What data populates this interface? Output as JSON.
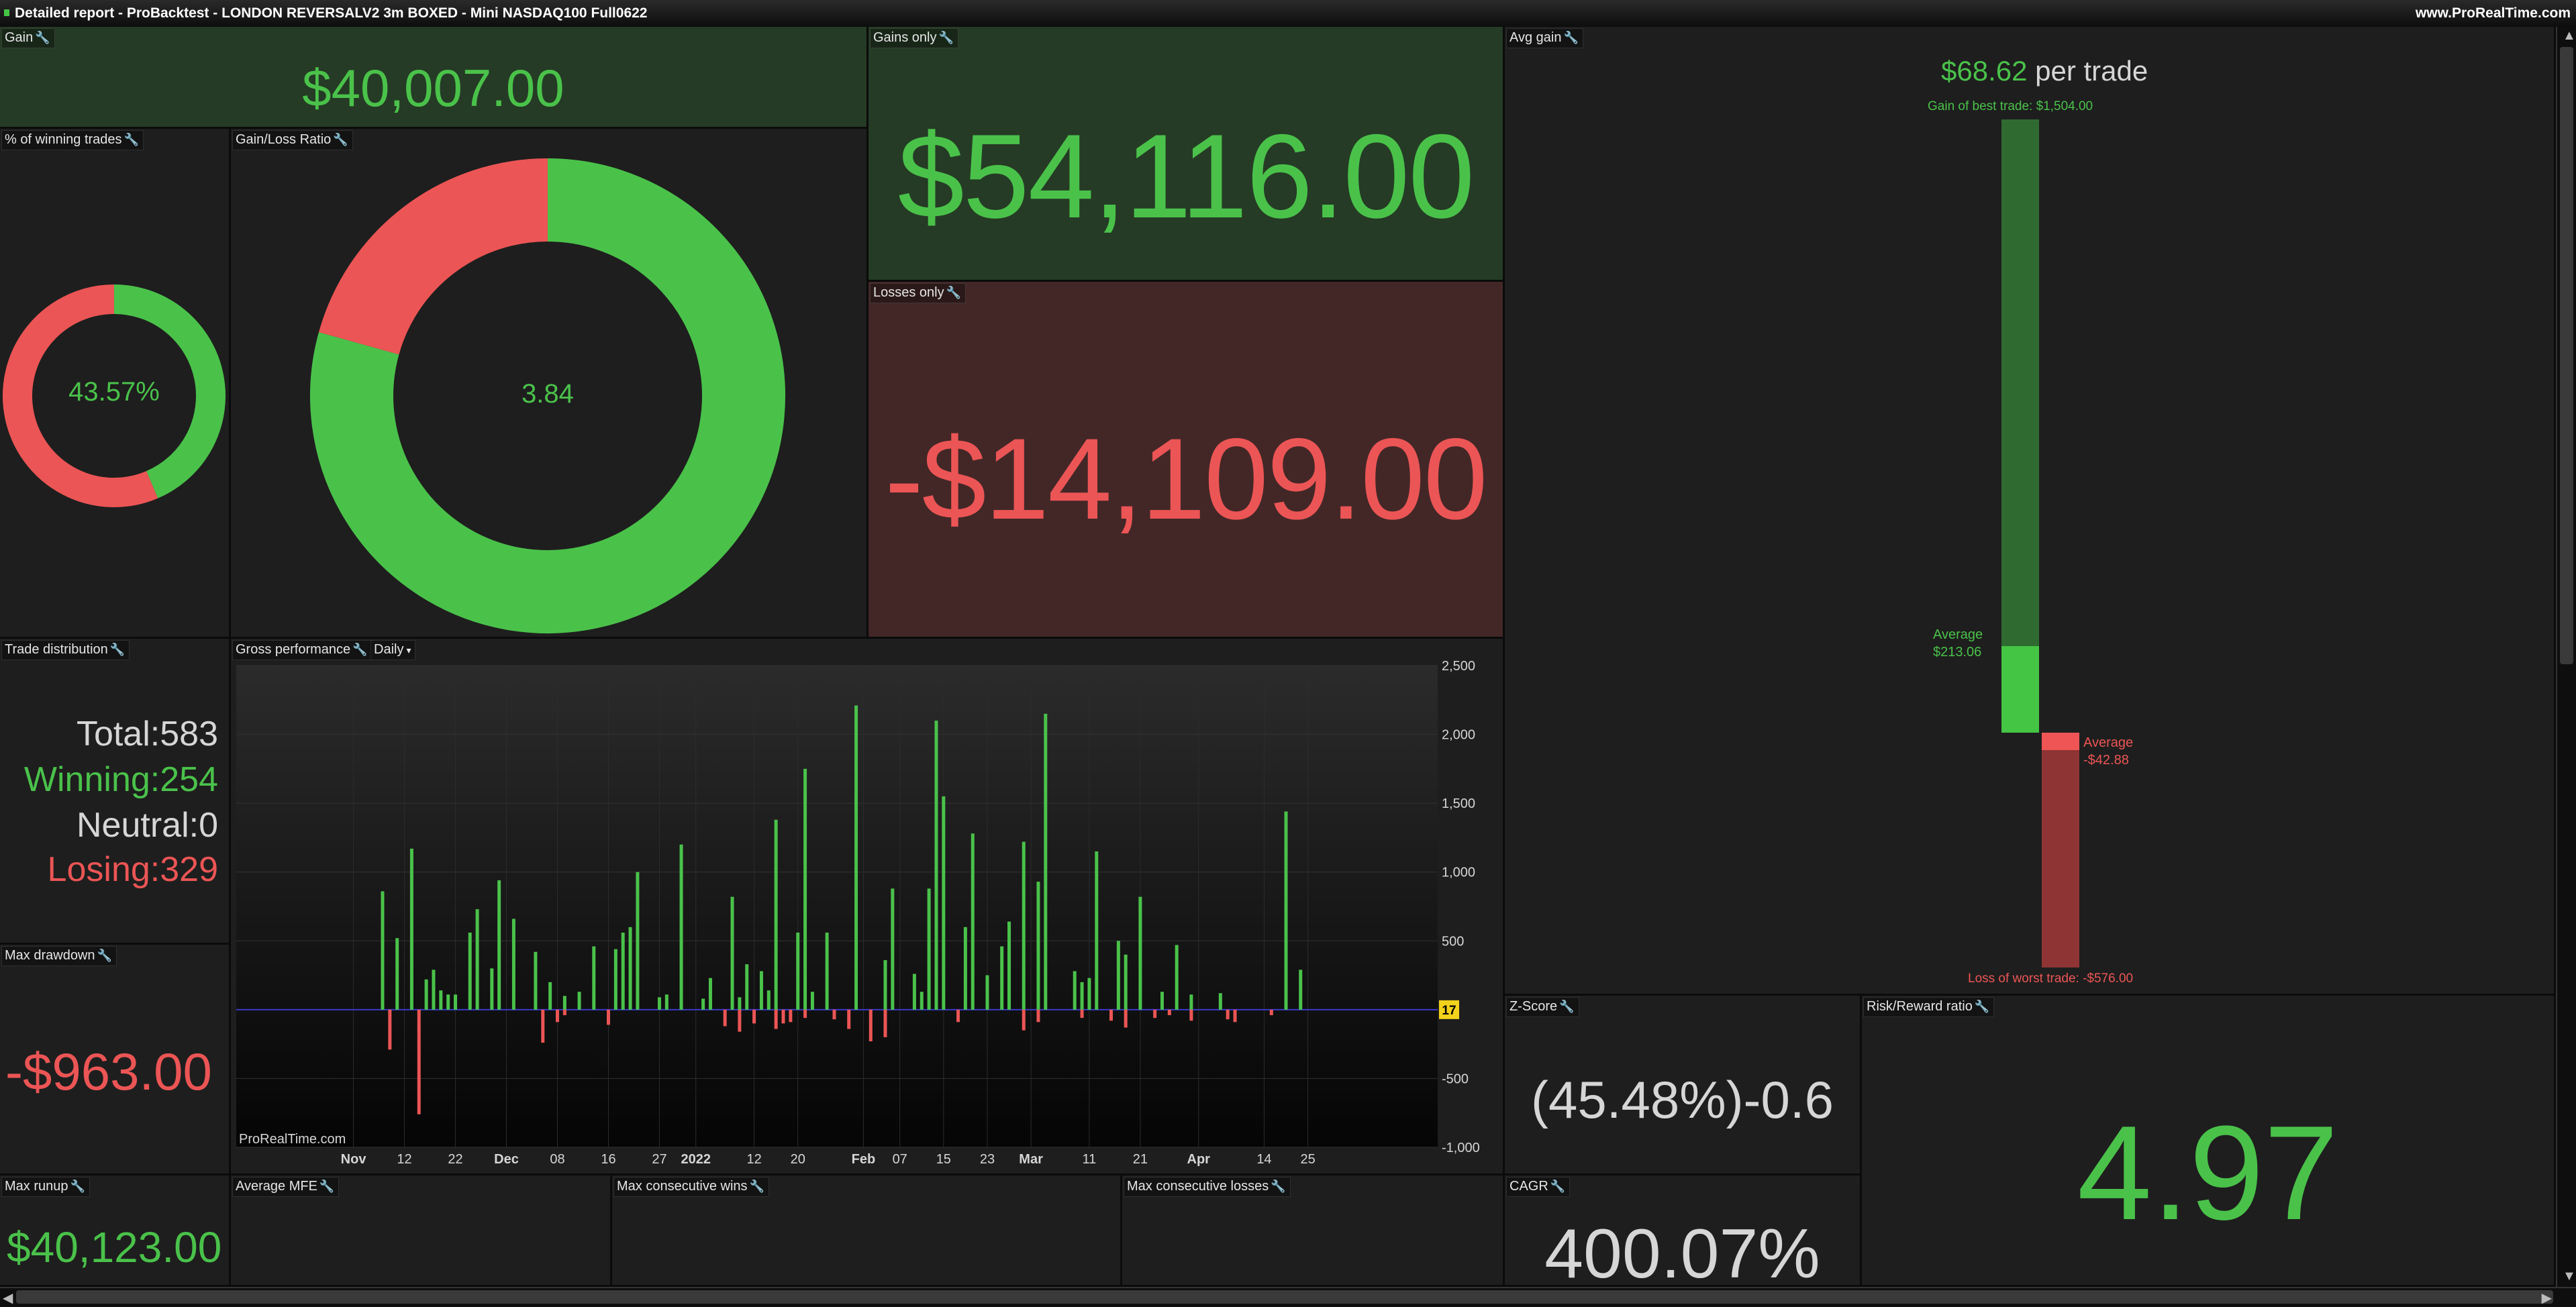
{
  "window": {
    "title": "Detailed report - ProBacktest - LONDON REVERSALV2 3m BOXED - Mini NASDAQ100 Full0622",
    "site": "www.ProRealTime.com"
  },
  "colors": {
    "green": "#4ac24a",
    "red": "#ec5555",
    "text": "#d6d6d6"
  },
  "gain": {
    "label": "Gain",
    "value": "$40,007.00"
  },
  "gains_only": {
    "label": "Gains only",
    "value": "$54,116.00"
  },
  "losses_only": {
    "label": "Losses only",
    "value": "-$14,109.00"
  },
  "winning_pct": {
    "label": "% of winning trades",
    "value": "43.57%",
    "fraction": 0.4357
  },
  "gain_loss_ratio": {
    "label": "Gain/Loss Ratio",
    "value": "3.84",
    "win_fraction": 0.7932
  },
  "avg_gain": {
    "label": "Avg gain",
    "per_trade_value": "$68.62",
    "per_trade_text": "per trade",
    "best_label": "Gain of best trade: $1,504.00",
    "avg_win_label": "Average",
    "avg_win_value": "$213.06",
    "avg_loss_label": "Average",
    "avg_loss_value": "-$42.88",
    "worst_label": "Loss of worst trade: -$576.00",
    "best": 1504,
    "avg_win": 213.06,
    "avg_loss": -42.88,
    "worst": -576
  },
  "trade_distribution": {
    "label": "Trade distribution",
    "total_label": "Total:",
    "total": "583",
    "winning_label": "Winning:",
    "winning": "254",
    "neutral_label": "Neutral:",
    "neutral": "0",
    "losing_label": "Losing:",
    "losing": "329"
  },
  "max_drawdown": {
    "label": "Max drawdown",
    "value": "-$963.00"
  },
  "max_runup": {
    "label": "Max runup",
    "value": "$40,123.00"
  },
  "average_mfe": {
    "label": "Average MFE"
  },
  "max_consecutive_wins": {
    "label": "Max consecutive wins"
  },
  "max_consecutive_losses": {
    "label": "Max consecutive losses"
  },
  "z_score": {
    "label": "Z-Score",
    "value": "(45.48%)-0.6"
  },
  "risk_reward": {
    "label": "Risk/Reward ratio",
    "value": "4.97"
  },
  "cagr": {
    "label": "CAGR",
    "value": "400.07%"
  },
  "gross_performance": {
    "label": "Gross performance",
    "period_option": "Daily",
    "watermark": "ProRealTime.com",
    "current_badge": "17"
  },
  "chart_data": {
    "type": "bar",
    "y_ticks": [
      "2,500",
      "2,000",
      "1,500",
      "1,000",
      "500",
      "-500",
      "-1,000"
    ],
    "y_tick_values": [
      2500,
      2000,
      1500,
      1000,
      500,
      -500,
      -1000
    ],
    "ylim": [
      -1000,
      2500
    ],
    "x_tick_labels": [
      {
        "label": "Nov",
        "idx": 3,
        "bold": true
      },
      {
        "label": "12",
        "idx": 10,
        "bold": false
      },
      {
        "label": "22",
        "idx": 17,
        "bold": false
      },
      {
        "label": "Dec",
        "idx": 24,
        "bold": true
      },
      {
        "label": "08",
        "idx": 31,
        "bold": false
      },
      {
        "label": "16",
        "idx": 38,
        "bold": false
      },
      {
        "label": "27",
        "idx": 45,
        "bold": false
      },
      {
        "label": "2022",
        "idx": 50,
        "bold": true
      },
      {
        "label": "12",
        "idx": 58,
        "bold": false
      },
      {
        "label": "20",
        "idx": 64,
        "bold": false
      },
      {
        "label": "Feb",
        "idx": 73,
        "bold": true
      },
      {
        "label": "07",
        "idx": 78,
        "bold": false
      },
      {
        "label": "15",
        "idx": 84,
        "bold": false
      },
      {
        "label": "23",
        "idx": 90,
        "bold": false
      },
      {
        "label": "Mar",
        "idx": 96,
        "bold": true
      },
      {
        "label": "11",
        "idx": 104,
        "bold": false
      },
      {
        "label": "21",
        "idx": 111,
        "bold": false
      },
      {
        "label": "Apr",
        "idx": 119,
        "bold": true
      },
      {
        "label": "14",
        "idx": 128,
        "bold": false
      },
      {
        "label": "25",
        "idx": 134,
        "bold": false
      }
    ],
    "bar_count": 139,
    "positive": [
      0,
      0,
      0,
      0,
      0,
      0,
      0,
      860,
      0,
      520,
      0,
      1170,
      0,
      220,
      290,
      140,
      110,
      110,
      0,
      560,
      730,
      0,
      300,
      940,
      0,
      660,
      0,
      0,
      420,
      0,
      200,
      0,
      100,
      0,
      130,
      0,
      460,
      0,
      0,
      440,
      560,
      600,
      1000,
      0,
      0,
      90,
      110,
      0,
      1200,
      0,
      0,
      80,
      230,
      0,
      0,
      820,
      90,
      330,
      0,
      280,
      140,
      1380,
      0,
      0,
      560,
      1750,
      130,
      0,
      560,
      0,
      0,
      0,
      2210,
      0,
      0,
      0,
      360,
      880,
      0,
      0,
      260,
      130,
      880,
      2100,
      1550,
      0,
      0,
      600,
      1280,
      0,
      250,
      0,
      460,
      640,
      0,
      1220,
      0,
      930,
      2150,
      0,
      0,
      0,
      280,
      200,
      230,
      1150,
      0,
      0,
      500,
      400,
      0,
      820,
      0,
      0,
      130,
      0,
      470,
      0,
      110,
      0,
      0,
      0,
      120,
      0,
      0,
      0,
      0,
      0,
      0,
      0,
      0,
      1440,
      0,
      290,
      0,
      0,
      0,
      0,
      0,
      0,
      0,
      0
    ],
    "negative": [
      0,
      0,
      0,
      0,
      0,
      0,
      0,
      0,
      -290,
      0,
      0,
      0,
      -760,
      0,
      0,
      0,
      0,
      0,
      0,
      0,
      0,
      0,
      0,
      0,
      0,
      0,
      0,
      0,
      0,
      -240,
      0,
      -90,
      -40,
      0,
      0,
      0,
      0,
      0,
      -110,
      0,
      0,
      0,
      0,
      0,
      0,
      0,
      0,
      0,
      0,
      0,
      0,
      0,
      0,
      0,
      -120,
      0,
      -160,
      0,
      -100,
      0,
      0,
      -140,
      -100,
      -90,
      0,
      -60,
      0,
      0,
      0,
      -70,
      0,
      -140,
      0,
      0,
      -230,
      0,
      -200,
      0,
      0,
      0,
      0,
      0,
      0,
      0,
      0,
      0,
      -90,
      0,
      0,
      0,
      0,
      0,
      0,
      0,
      0,
      -150,
      0,
      -90,
      0,
      0,
      0,
      0,
      0,
      -60,
      0,
      0,
      0,
      -80,
      0,
      -130,
      0,
      0,
      0,
      -60,
      0,
      -40,
      0,
      0,
      -80,
      0,
      0,
      0,
      0,
      -70,
      -90,
      0,
      0,
      0,
      0,
      -40,
      0,
      0,
      0,
      0,
      0,
      0,
      0,
      0,
      0,
      0,
      0,
      0
    ]
  }
}
